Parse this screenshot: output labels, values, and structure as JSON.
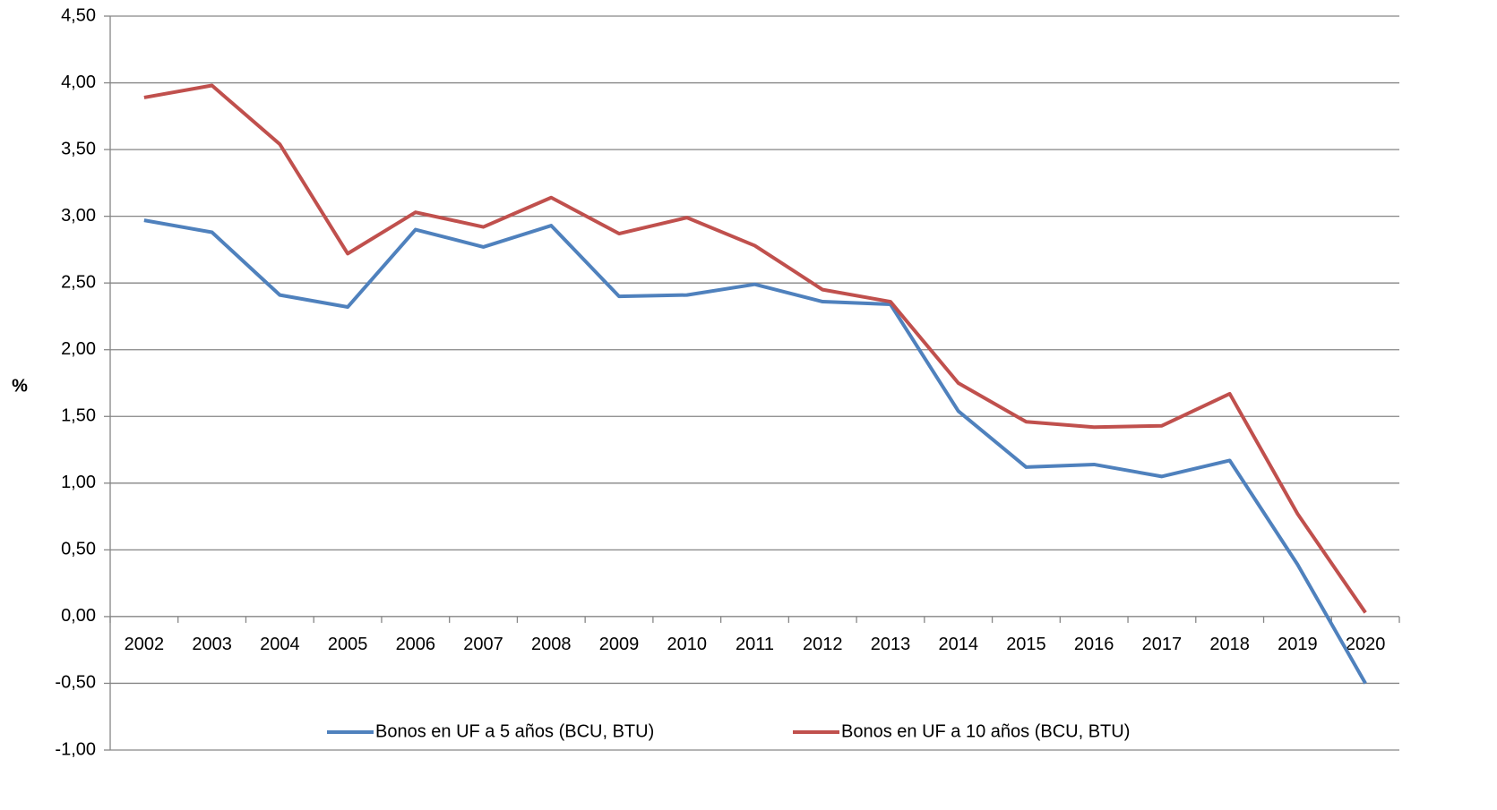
{
  "chart_data": {
    "type": "line",
    "y_label": "%",
    "categories": [
      "2002",
      "2003",
      "2004",
      "2005",
      "2006",
      "2007",
      "2008",
      "2009",
      "2010",
      "2011",
      "2012",
      "2013",
      "2014",
      "2015",
      "2016",
      "2017",
      "2018",
      "2019",
      "2020"
    ],
    "series": [
      {
        "name": "Bonos en UF a 5 años (BCU, BTU)",
        "color": "#4f81bd",
        "values": [
          2.97,
          2.88,
          2.41,
          2.32,
          2.9,
          2.77,
          2.93,
          2.4,
          2.41,
          2.49,
          2.36,
          2.34,
          1.54,
          1.12,
          1.14,
          1.05,
          1.17,
          0.39,
          -0.5
        ]
      },
      {
        "name": "Bonos en UF a 10 años (BCU, BTU)",
        "color": "#c0504d",
        "values": [
          3.89,
          3.98,
          3.54,
          2.72,
          3.03,
          2.92,
          3.14,
          2.87,
          2.99,
          2.78,
          2.45,
          2.36,
          1.75,
          1.46,
          1.42,
          1.43,
          1.67,
          0.77,
          0.03
        ]
      }
    ],
    "ylim": [
      -1,
      4.5
    ],
    "yticks": [
      {
        "value": -1,
        "label": "-1,00"
      },
      {
        "value": -0.5,
        "label": "-0,50"
      },
      {
        "value": 0,
        "label": "0,00"
      },
      {
        "value": 0.5,
        "label": "0,50"
      },
      {
        "value": 1,
        "label": "1,00"
      },
      {
        "value": 1.5,
        "label": "1,50"
      },
      {
        "value": 2,
        "label": "2,00"
      },
      {
        "value": 2.5,
        "label": "2,50"
      },
      {
        "value": 3,
        "label": "3,00"
      },
      {
        "value": 3.5,
        "label": "3,50"
      },
      {
        "value": 4,
        "label": "4,00"
      },
      {
        "value": 4.5,
        "label": "4,50"
      }
    ],
    "grid": true,
    "legend": "bottom"
  }
}
